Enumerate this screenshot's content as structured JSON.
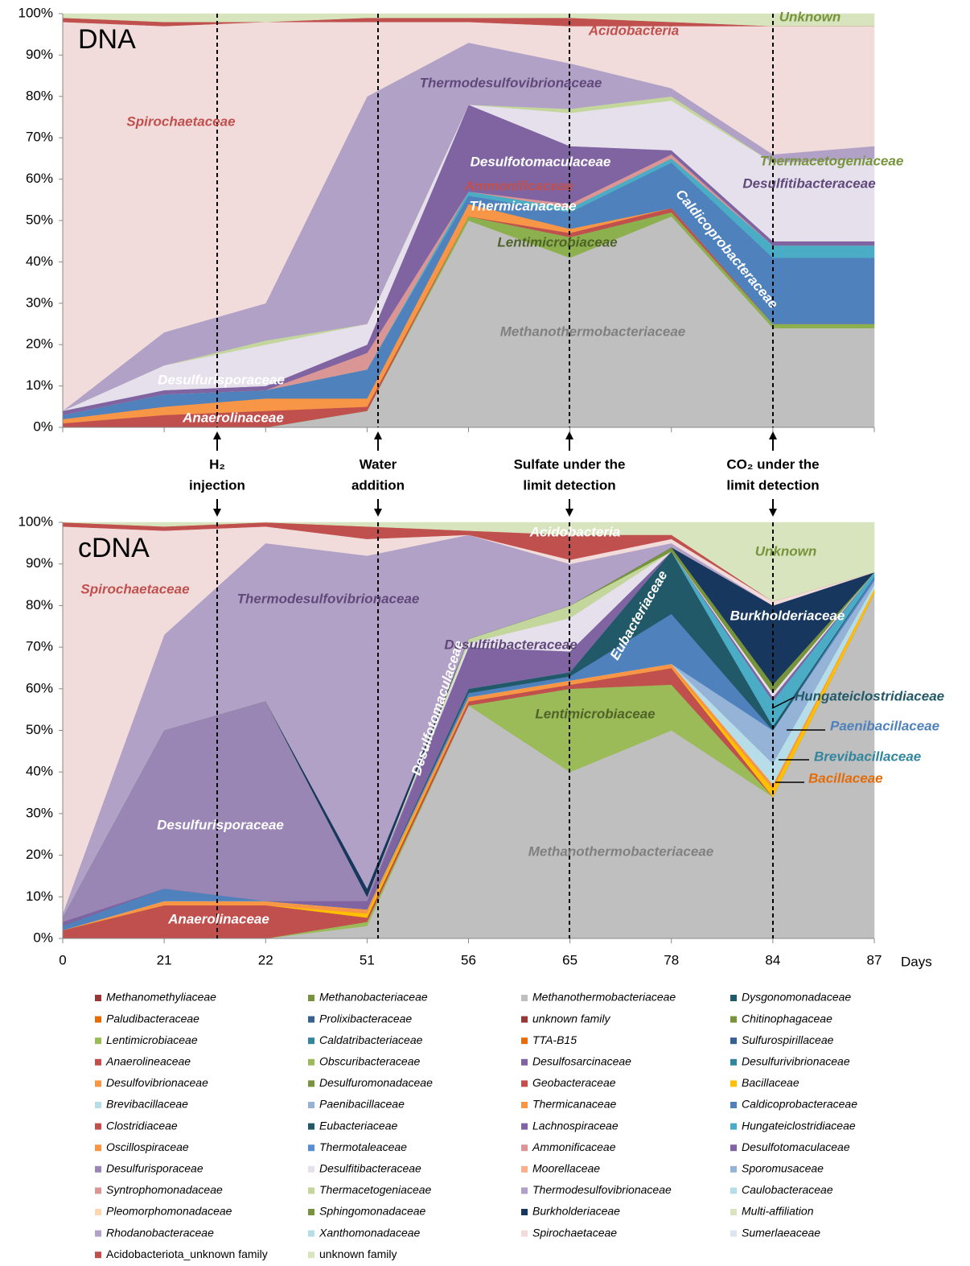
{
  "chart_data": [
    {
      "type": "area",
      "panel_label": "DNA",
      "categories": [
        "0",
        "21",
        "22",
        "51",
        "56",
        "65",
        "78",
        "84",
        "87"
      ],
      "ylim": [
        0,
        100
      ],
      "yticks": [
        {
          "value": 0,
          "label": "0%"
        },
        {
          "value": 10,
          "label": "10%"
        },
        {
          "value": 20,
          "label": "20%"
        },
        {
          "value": 30,
          "label": "30%"
        },
        {
          "value": 40,
          "label": "40%"
        },
        {
          "value": 50,
          "label": "50%"
        },
        {
          "value": 60,
          "label": "60%"
        },
        {
          "value": 70,
          "label": "70%"
        },
        {
          "value": 80,
          "label": "80%"
        },
        {
          "value": 90,
          "label": "90%"
        },
        {
          "value": 100,
          "label": "100%"
        }
      ],
      "series": [
        {
          "name": "Methanothermobacteriaceae",
          "color": "#bfbfbf",
          "values": [
            0,
            0,
            0,
            4,
            50,
            41,
            51,
            24,
            24
          ]
        },
        {
          "name": "Lentimicrobiaceae",
          "color": "#8db04e",
          "values": [
            0,
            0,
            0,
            0,
            1,
            5,
            1,
            1,
            1
          ]
        },
        {
          "name": "Anaerolineaceae",
          "color": "#c0504d",
          "values": [
            1,
            3,
            4,
            1,
            0,
            1,
            1,
            0,
            0
          ]
        },
        {
          "name": "Thermicanaceae",
          "color": "#f79646",
          "values": [
            1,
            2,
            3,
            2,
            3,
            1,
            0,
            0,
            0
          ]
        },
        {
          "name": "Caldicoprobacteraceae",
          "color": "#4f81bd",
          "values": [
            1,
            3,
            2,
            7,
            2,
            4,
            11,
            16,
            16
          ]
        },
        {
          "name": "Hungateiclostridiaceae",
          "color": "#4bacc6",
          "values": [
            0,
            0,
            0,
            0,
            1,
            1,
            1,
            3,
            3
          ]
        },
        {
          "name": "Ammonificaceae",
          "color": "#d99694",
          "values": [
            0,
            0,
            0,
            4,
            0,
            1,
            1,
            0,
            0
          ]
        },
        {
          "name": "Desulfotomaculaceae",
          "color": "#8064a2",
          "values": [
            1,
            1,
            1,
            2,
            21,
            14,
            1,
            1,
            1
          ]
        },
        {
          "name": "Desulfitibacteraceae",
          "color": "#e6e0ec",
          "values": [
            0,
            6,
            10,
            5,
            0,
            8,
            12,
            19,
            20
          ]
        },
        {
          "name": "Thermacetogeniaceae",
          "color": "#c3d69b",
          "values": [
            0,
            0,
            1,
            0,
            0,
            1,
            1,
            0,
            0
          ]
        },
        {
          "name": "Thermodesulfovibrionaceae",
          "color": "#b2a1c7",
          "values": [
            0,
            8,
            9,
            55,
            15,
            11,
            2,
            2,
            3
          ]
        },
        {
          "name": "Spirochaetaceae",
          "color": "#f2dcdb",
          "values": [
            94,
            74,
            68,
            18,
            5,
            9,
            15,
            31,
            29
          ]
        },
        {
          "name": "Acidobacteriota_unknown family",
          "color": "#c0504d",
          "values": [
            1,
            1,
            0,
            1,
            1,
            2,
            1,
            0,
            0
          ]
        },
        {
          "name": "unknown family",
          "color": "#d7e4bd",
          "values": [
            1,
            2,
            2,
            1,
            1,
            1,
            2,
            3,
            3
          ]
        }
      ],
      "annotations": [
        {
          "text": "Spirochaetaceae",
          "color": "#c0504d"
        },
        {
          "text": "Acidobacteria",
          "color": "#c0504d"
        },
        {
          "text": "Unknown",
          "color": "#77933c"
        },
        {
          "text": "Thermodesulfovibrionaceae",
          "color": "#60497a"
        },
        {
          "text": "Desulfotomaculaceae",
          "color": "#ffffff"
        },
        {
          "text": "Ammonificaceae",
          "color": "#c0504d"
        },
        {
          "text": "Thermicanaceae",
          "color": "#ffffff"
        },
        {
          "text": "Lentimicrobiaceae",
          "color": "#4f6228"
        },
        {
          "text": "Caldicoprobacteraceae",
          "color": "#ffffff"
        },
        {
          "text": "Thermacetogeniaceae",
          "color": "#77933c"
        },
        {
          "text": "Desulfitibacteraceae",
          "color": "#60497a"
        },
        {
          "text": "Methanothermobacteriaceae",
          "color": "#808080"
        },
        {
          "text": "Desulfurisporaceae",
          "color": "#ffffff"
        },
        {
          "text": "Anaerolinaceae",
          "color": "#ffffff"
        }
      ]
    },
    {
      "type": "area",
      "panel_label": "cDNA",
      "x_label": "Days",
      "categories": [
        "0",
        "21",
        "22",
        "51",
        "56",
        "65",
        "78",
        "84",
        "87"
      ],
      "ylim": [
        0,
        100
      ],
      "yticks": [
        {
          "value": 0,
          "label": "0%"
        },
        {
          "value": 10,
          "label": "10%"
        },
        {
          "value": 20,
          "label": "20%"
        },
        {
          "value": 30,
          "label": "30%"
        },
        {
          "value": 40,
          "label": "40%"
        },
        {
          "value": 50,
          "label": "50%"
        },
        {
          "value": 60,
          "label": "60%"
        },
        {
          "value": 70,
          "label": "70%"
        },
        {
          "value": 80,
          "label": "80%"
        },
        {
          "value": 90,
          "label": "90%"
        },
        {
          "value": 100,
          "label": "100%"
        }
      ],
      "series": [
        {
          "name": "Methanothermobacteriaceae",
          "color": "#bfbfbf",
          "values": [
            0,
            0,
            0,
            3,
            56,
            40,
            50,
            34,
            83
          ]
        },
        {
          "name": "Lentimicrobiaceae",
          "color": "#9bbb59",
          "values": [
            0,
            0,
            0,
            1,
            0,
            20,
            11,
            0,
            0
          ]
        },
        {
          "name": "Anaerolineaceae",
          "color": "#c0504d",
          "values": [
            2,
            8,
            8,
            1,
            1,
            1,
            4,
            0,
            0
          ]
        },
        {
          "name": "Bacillaceae",
          "color": "#ffc000",
          "values": [
            0,
            0,
            0,
            1,
            0,
            0,
            0,
            2,
            1
          ]
        },
        {
          "name": "Thermicanaceae",
          "color": "#f79646",
          "values": [
            0,
            1,
            1,
            1,
            1,
            1,
            1,
            1,
            0
          ]
        },
        {
          "name": "Brevibacillaceae",
          "color": "#b7dee8",
          "values": [
            0,
            0,
            0,
            0,
            0,
            0,
            0,
            5,
            1
          ]
        },
        {
          "name": "Paenibacillaceae",
          "color": "#95b3d7",
          "values": [
            0,
            0,
            0,
            0,
            0,
            0,
            0,
            8,
            1
          ]
        },
        {
          "name": "Caldicoprobacteraceae",
          "color": "#4f81bd",
          "values": [
            1,
            3,
            0,
            0,
            1,
            1,
            12,
            0,
            1
          ]
        },
        {
          "name": "Eubacteriaceae",
          "color": "#215968",
          "values": [
            0,
            0,
            0,
            0,
            1,
            1,
            15,
            1,
            0
          ]
        },
        {
          "name": "Hungateiclostridiaceae",
          "color": "#4bacc6",
          "values": [
            0,
            0,
            0,
            0,
            0,
            0,
            0,
            6,
            1
          ]
        },
        {
          "name": "Desulfotomaculaceae",
          "color": "#8064a2",
          "values": [
            1,
            0,
            0,
            2,
            10,
            5,
            0,
            1,
            0
          ]
        },
        {
          "name": "Desulfurisporaceae",
          "color": "#9a86b5",
          "values": [
            1,
            38,
            48,
            1,
            0,
            0,
            0,
            0,
            0
          ]
        },
        {
          "name": "Desulfitibacteraceae",
          "color": "#e6e0ec",
          "values": [
            0,
            0,
            0,
            0,
            1,
            8,
            0,
            1,
            0
          ]
        },
        {
          "name": "Thermacetogeniaceae",
          "color": "#c3d69b",
          "values": [
            0,
            0,
            0,
            0,
            1,
            3,
            0,
            0,
            0
          ]
        },
        {
          "name": "Chitinophagaceae",
          "color": "#77933c",
          "values": [
            0,
            0,
            0,
            0,
            0,
            0,
            1,
            2,
            0
          ]
        },
        {
          "name": "Burkholderiaceae",
          "color": "#17375e",
          "values": [
            0,
            0,
            0,
            2,
            0,
            0,
            0,
            19,
            0
          ]
        },
        {
          "name": "Thermodesulfovibrionaceae",
          "color": "#b2a1c7",
          "values": [
            1,
            23,
            38,
            80,
            25,
            10,
            1,
            0,
            0
          ]
        },
        {
          "name": "Spirochaetaceae",
          "color": "#f2dcdb",
          "values": [
            93,
            25,
            4,
            4,
            0,
            1,
            1,
            1,
            0
          ]
        },
        {
          "name": "Acidobacteriota_unknown family",
          "color": "#c0504d",
          "values": [
            1,
            1,
            1,
            3,
            1,
            6,
            1,
            0,
            0
          ]
        },
        {
          "name": "unknown family",
          "color": "#d7e4bd",
          "values": [
            0,
            1,
            0,
            1,
            2,
            3,
            3,
            19,
            12
          ]
        }
      ],
      "annotations": [
        {
          "text": "Acidobacteria",
          "color": "#ffffff"
        },
        {
          "text": "Unknown",
          "color": "#77933c"
        },
        {
          "text": "Spirochaetaceae",
          "color": "#c0504d"
        },
        {
          "text": "Thermodesulfovibrionaceae",
          "color": "#60497a"
        },
        {
          "text": "Burkholderiaceae",
          "color": "#ffffff"
        },
        {
          "text": "Desulfitibacteraceae",
          "color": "#60497a"
        },
        {
          "text": "Eubacteriaceae",
          "color": "#ffffff"
        },
        {
          "text": "Desulfotomaculaceae",
          "color": "#ffffff"
        },
        {
          "text": "Lentimicrobiaceae",
          "color": "#4f6228"
        },
        {
          "text": "Hungateiclostridiaceae",
          "color": "#215968"
        },
        {
          "text": "Paenibacillaceae",
          "color": "#4f81bd"
        },
        {
          "text": "Brevibacillaceae",
          "color": "#31859c"
        },
        {
          "text": "Bacillaceae",
          "color": "#e36c09"
        },
        {
          "text": "Desulfurisporaceae",
          "color": "#ffffff"
        },
        {
          "text": "Methanothermobacteriaceae",
          "color": "#808080"
        },
        {
          "text": "Anaerolinaceae",
          "color": "#ffffff"
        }
      ]
    }
  ],
  "events": [
    [
      "H₂",
      "injection"
    ],
    [
      "Water",
      "addition"
    ],
    [
      "Sulfate under the",
      "limit detection"
    ],
    [
      "CO₂ under the",
      "limit detection"
    ]
  ],
  "legend": [
    {
      "name": "Methanomethyliaceae",
      "color": "#953735"
    },
    {
      "name": "Methanobacteriaceae",
      "color": "#77933c"
    },
    {
      "name": "Methanothermobacteriaceae",
      "color": "#bfbfbf"
    },
    {
      "name": "Dysgonomonadaceae",
      "color": "#215968"
    },
    {
      "name": "Paludibacteraceae",
      "color": "#e36c09"
    },
    {
      "name": "Prolixibacteraceae",
      "color": "#376092"
    },
    {
      "name": "unknown family",
      "color": "#953735"
    },
    {
      "name": "Chitinophagaceae",
      "color": "#77933c"
    },
    {
      "name": "Lentimicrobiaceae",
      "color": "#9bbb59"
    },
    {
      "name": "Caldatribacteriaceae",
      "color": "#31859c"
    },
    {
      "name": "TTA-B15",
      "color": "#e46c0a"
    },
    {
      "name": "Sulfurospirillaceae",
      "color": "#376092"
    },
    {
      "name": "Anaerolineaceae",
      "color": "#c0504d"
    },
    {
      "name": "Obscuribacteraceae",
      "color": "#9bbb59"
    },
    {
      "name": "Desulfosarcinaceae",
      "color": "#8064a2"
    },
    {
      "name": "Desulfurivibrionaceae",
      "color": "#31859c"
    },
    {
      "name": "Desulfovibrionaceae",
      "color": "#f79646"
    },
    {
      "name": "Desulfuromonadaceae",
      "color": "#77933c"
    },
    {
      "name": "Geobacteraceae",
      "color": "#c0504d"
    },
    {
      "name": "Bacillaceae",
      "color": "#ffc000"
    },
    {
      "name": "Brevibacillaceae",
      "color": "#b7dee8"
    },
    {
      "name": "Paenibacillaceae",
      "color": "#95b3d7"
    },
    {
      "name": "Thermicanaceae",
      "color": "#f79646"
    },
    {
      "name": "Caldicoprobacteraceae",
      "color": "#4f81bd"
    },
    {
      "name": "Clostridiaceae",
      "color": "#c0504d"
    },
    {
      "name": "Eubacteriaceae",
      "color": "#215968"
    },
    {
      "name": "Lachnospiraceae",
      "color": "#8064a2"
    },
    {
      "name": "Hungateiclostridiaceae",
      "color": "#4bacc6"
    },
    {
      "name": "Oscillospiraceae",
      "color": "#f79646"
    },
    {
      "name": "Thermotaleaceae",
      "color": "#558ed5"
    },
    {
      "name": "Ammonificaceae",
      "color": "#d99694"
    },
    {
      "name": "Desulfotomaculaceae",
      "color": "#8064a2"
    },
    {
      "name": "Desulfurisporaceae",
      "color": "#9a86b5"
    },
    {
      "name": "Desulfitibacteraceae",
      "color": "#e6e0ec"
    },
    {
      "name": "Moorellaceae",
      "color": "#fab08c"
    },
    {
      "name": "Sporomusaceae",
      "color": "#95b3d7"
    },
    {
      "name": "Syntrophomonadaceae",
      "color": "#d99694"
    },
    {
      "name": "Thermacetogeniaceae",
      "color": "#c3d69b"
    },
    {
      "name": "Thermodesulfovibrionaceae",
      "color": "#b2a1c7"
    },
    {
      "name": "Caulobacteraceae",
      "color": "#b7dee8"
    },
    {
      "name": "Pleomorphomonadaceae",
      "color": "#fcd5b5"
    },
    {
      "name": "Sphingomonadaceae",
      "color": "#77933c"
    },
    {
      "name": "Burkholderiaceae",
      "color": "#17375e"
    },
    {
      "name": "Multi-affiliation",
      "color": "#d7e4bd"
    },
    {
      "name": "Rhodanobacteraceae",
      "color": "#b3a2c7"
    },
    {
      "name": "Xanthomonadaceae",
      "color": "#b7dee8"
    },
    {
      "name": "Spirochaetaceae",
      "color": "#f2dcdb"
    },
    {
      "name": "Sumerlaeaceae",
      "color": "#dce6f2"
    },
    {
      "name": "Acidobacteriota_unknown family",
      "color": "#c0504d"
    },
    {
      "name": "unknown family",
      "color": "#d7e4bd"
    }
  ]
}
